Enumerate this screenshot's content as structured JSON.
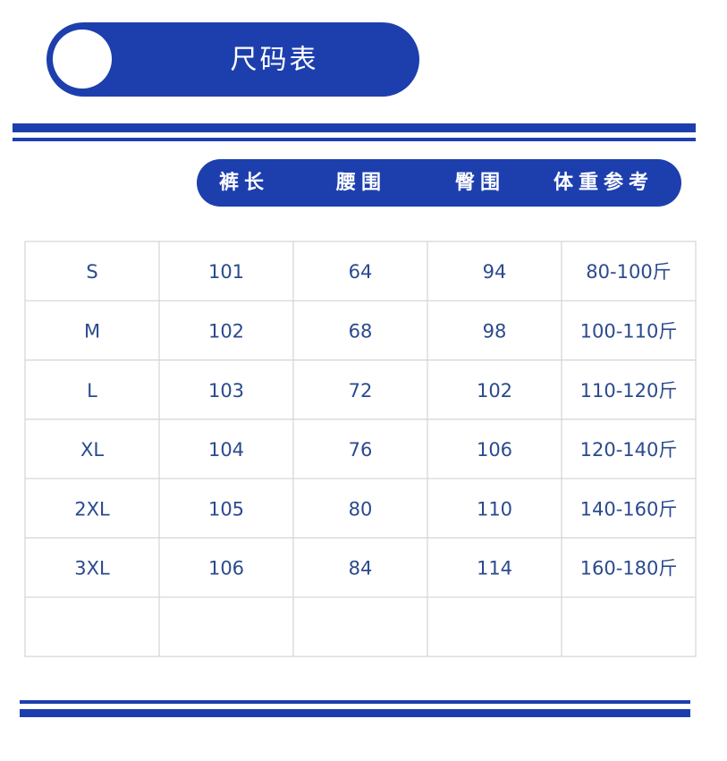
{
  "header": {
    "title": "尺码表"
  },
  "table": {
    "headers": [
      "裤长",
      "腰围",
      "臀围",
      "体重参考"
    ],
    "rows": [
      [
        "S",
        "101",
        "64",
        "94",
        "80-100斤"
      ],
      [
        "M",
        "102",
        "68",
        "98",
        "100-110斤"
      ],
      [
        "L",
        "103",
        "72",
        "102",
        "110-120斤"
      ],
      [
        "XL",
        "104",
        "76",
        "106",
        "120-140斤"
      ],
      [
        "2XL",
        "105",
        "80",
        "110",
        "140-160斤"
      ],
      [
        "3XL",
        "106",
        "84",
        "114",
        "160-180斤"
      ]
    ]
  }
}
